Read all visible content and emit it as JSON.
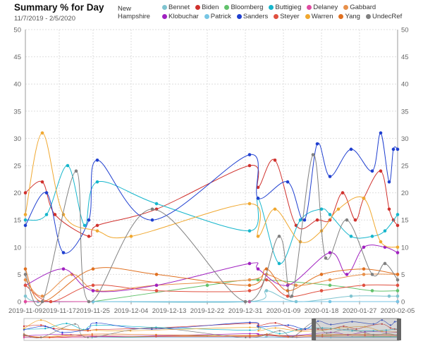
{
  "header": {
    "title": "Summary % for Day",
    "date_range": "11/7/2019 - 2/5/2020",
    "filter_label": "New Hampshire"
  },
  "chart_data": {
    "type": "line",
    "title": "Summary % for Day",
    "subtitle": "11/7/2019 - 2/5/2020",
    "xlabel": "",
    "ylabel": "",
    "ylim": [
      0,
      50
    ],
    "yticks": [
      0,
      5,
      10,
      15,
      20,
      25,
      30,
      35,
      40,
      45,
      50
    ],
    "xlim": [
      "2019-11-09",
      "2020-02-05"
    ],
    "xticks": [
      "2019-11-09",
      "2019-11-17",
      "2019-11-25",
      "2019-12-04",
      "2019-12-13",
      "2019-12-22",
      "2019-12-31",
      "2020-01-09",
      "2020-01-18",
      "2020-01-27",
      "2020-02-05"
    ],
    "grid": true,
    "legend": "top",
    "series": [
      {
        "name": "Bennet",
        "color": "#7fc4d0",
        "points": [
          [
            "2019-11-09",
            1
          ],
          [
            "2019-11-12",
            0
          ],
          [
            "2019-11-25",
            0
          ],
          [
            "2020-01-01",
            0
          ],
          [
            "2020-01-05",
            2
          ],
          [
            "2020-01-12",
            0
          ],
          [
            "2020-01-25",
            1
          ],
          [
            "2020-02-03",
            1
          ],
          [
            "2020-02-05",
            1
          ]
        ]
      },
      {
        "name": "Biden",
        "color": "#d0312d",
        "points": [
          [
            "2019-11-09",
            20
          ],
          [
            "2019-11-13",
            22
          ],
          [
            "2019-11-16",
            16
          ],
          [
            "2019-11-24",
            12
          ],
          [
            "2019-11-26",
            14
          ],
          [
            "2019-12-10",
            17
          ],
          [
            "2020-01-01",
            25
          ],
          [
            "2020-01-03",
            21
          ],
          [
            "2020-01-07",
            26
          ],
          [
            "2020-01-12",
            14
          ],
          [
            "2020-01-17",
            15
          ],
          [
            "2020-01-20",
            15
          ],
          [
            "2020-01-23",
            20
          ],
          [
            "2020-01-26",
            15
          ],
          [
            "2020-01-28",
            19
          ],
          [
            "2020-02-01",
            24
          ],
          [
            "2020-02-03",
            17
          ],
          [
            "2020-02-04",
            15
          ],
          [
            "2020-02-05",
            14
          ]
        ]
      },
      {
        "name": "Bloomberg",
        "color": "#62c26c",
        "points": [
          [
            "2019-11-25",
            0
          ],
          [
            "2019-12-22",
            3
          ],
          [
            "2020-01-03",
            4
          ],
          [
            "2020-01-20",
            3
          ],
          [
            "2020-01-30",
            2
          ],
          [
            "2020-02-05",
            2
          ]
        ]
      },
      {
        "name": "Buttigieg",
        "color": "#16b6cc",
        "points": [
          [
            "2019-11-09",
            15
          ],
          [
            "2019-11-14",
            16
          ],
          [
            "2019-11-19",
            25
          ],
          [
            "2019-11-23",
            14
          ],
          [
            "2019-11-26",
            22
          ],
          [
            "2019-12-10",
            18
          ],
          [
            "2020-01-01",
            13
          ],
          [
            "2020-01-03",
            19
          ],
          [
            "2020-01-08",
            7
          ],
          [
            "2020-01-13",
            15
          ],
          [
            "2020-01-18",
            17
          ],
          [
            "2020-01-20",
            16
          ],
          [
            "2020-01-25",
            12
          ],
          [
            "2020-01-30",
            12
          ],
          [
            "2020-02-02",
            13
          ],
          [
            "2020-02-05",
            16
          ]
        ]
      },
      {
        "name": "Delaney",
        "color": "#e04aa0",
        "points": [
          [
            "2019-11-09",
            0
          ],
          [
            "2020-01-01",
            0
          ],
          [
            "2020-02-05",
            0
          ]
        ]
      },
      {
        "name": "Gabbard",
        "color": "#e8904a",
        "points": [
          [
            "2019-11-09",
            4
          ],
          [
            "2019-11-13",
            1
          ],
          [
            "2019-11-20",
            5
          ],
          [
            "2019-11-26",
            2
          ],
          [
            "2019-12-10",
            3
          ],
          [
            "2020-01-01",
            4
          ],
          [
            "2020-01-05",
            5
          ],
          [
            "2020-01-12",
            3
          ],
          [
            "2020-01-20",
            4
          ],
          [
            "2020-01-28",
            5
          ],
          [
            "2020-02-05",
            5
          ]
        ]
      },
      {
        "name": "Klobuchar",
        "color": "#a020c0",
        "points": [
          [
            "2019-11-09",
            3
          ],
          [
            "2019-11-18",
            6
          ],
          [
            "2019-11-25",
            2
          ],
          [
            "2019-12-10",
            3
          ],
          [
            "2020-01-01",
            7
          ],
          [
            "2020-01-03",
            6
          ],
          [
            "2020-01-10",
            3
          ],
          [
            "2020-01-20",
            9
          ],
          [
            "2020-01-24",
            5
          ],
          [
            "2020-01-28",
            10
          ],
          [
            "2020-02-02",
            10
          ],
          [
            "2020-02-05",
            9
          ]
        ]
      },
      {
        "name": "Patrick",
        "color": "#77c6e4",
        "points": [
          [
            "2019-11-25",
            0
          ],
          [
            "2020-01-20",
            0
          ],
          [
            "2020-02-05",
            0
          ]
        ]
      },
      {
        "name": "Sanders",
        "color": "#1f3fd0",
        "points": [
          [
            "2019-11-09",
            14
          ],
          [
            "2019-11-14",
            20
          ],
          [
            "2019-11-18",
            9
          ],
          [
            "2019-11-24",
            15
          ],
          [
            "2019-11-26",
            26
          ],
          [
            "2019-12-09",
            15
          ],
          [
            "2020-01-01",
            27
          ],
          [
            "2020-01-03",
            19
          ],
          [
            "2020-01-10",
            22
          ],
          [
            "2020-01-14",
            15
          ],
          [
            "2020-01-17",
            29
          ],
          [
            "2020-01-20",
            23
          ],
          [
            "2020-01-25",
            28
          ],
          [
            "2020-01-30",
            24
          ],
          [
            "2020-02-01",
            31
          ],
          [
            "2020-02-03",
            22
          ],
          [
            "2020-02-04",
            28
          ],
          [
            "2020-02-05",
            28
          ]
        ]
      },
      {
        "name": "Steyer",
        "color": "#e05040",
        "points": [
          [
            "2019-11-09",
            3
          ],
          [
            "2019-11-15",
            0
          ],
          [
            "2019-11-25",
            3
          ],
          [
            "2019-12-10",
            2
          ],
          [
            "2020-01-01",
            2
          ],
          [
            "2020-01-05",
            4
          ],
          [
            "2020-01-10",
            1
          ],
          [
            "2020-01-18",
            2
          ],
          [
            "2020-01-28",
            3
          ],
          [
            "2020-02-05",
            3
          ]
        ]
      },
      {
        "name": "Warren",
        "color": "#f0a830",
        "points": [
          [
            "2019-11-09",
            16
          ],
          [
            "2019-11-13",
            31
          ],
          [
            "2019-11-18",
            16
          ],
          [
            "2019-11-26",
            13
          ],
          [
            "2019-12-04",
            12
          ],
          [
            "2020-01-01",
            18
          ],
          [
            "2020-01-03",
            12
          ],
          [
            "2020-01-07",
            17
          ],
          [
            "2020-01-13",
            11
          ],
          [
            "2020-01-18",
            13
          ],
          [
            "2020-01-22",
            17
          ],
          [
            "2020-01-28",
            19
          ],
          [
            "2020-02-01",
            11
          ],
          [
            "2020-02-05",
            10
          ]
        ]
      },
      {
        "name": "Yang",
        "color": "#e07020",
        "points": [
          [
            "2019-11-09",
            6
          ],
          [
            "2019-11-13",
            0
          ],
          [
            "2019-11-25",
            6
          ],
          [
            "2019-12-10",
            5
          ],
          [
            "2020-01-01",
            3
          ],
          [
            "2020-01-05",
            6
          ],
          [
            "2020-01-10",
            2
          ],
          [
            "2020-01-18",
            5
          ],
          [
            "2020-01-28",
            6
          ],
          [
            "2020-02-05",
            5
          ]
        ]
      },
      {
        "name": "UndecRef",
        "color": "#808080",
        "points": [
          [
            "2019-11-09",
            5
          ],
          [
            "2019-11-13",
            0
          ],
          [
            "2019-11-21",
            24
          ],
          [
            "2019-11-24",
            0
          ],
          [
            "2019-12-09",
            17
          ],
          [
            "2019-12-31",
            0
          ],
          [
            "2020-01-08",
            12
          ],
          [
            "2020-01-11",
            1
          ],
          [
            "2020-01-16",
            27
          ],
          [
            "2020-01-19",
            8
          ],
          [
            "2020-01-24",
            15
          ],
          [
            "2020-01-30",
            5
          ],
          [
            "2020-02-02",
            7
          ],
          [
            "2020-02-05",
            4
          ]
        ]
      }
    ]
  }
}
